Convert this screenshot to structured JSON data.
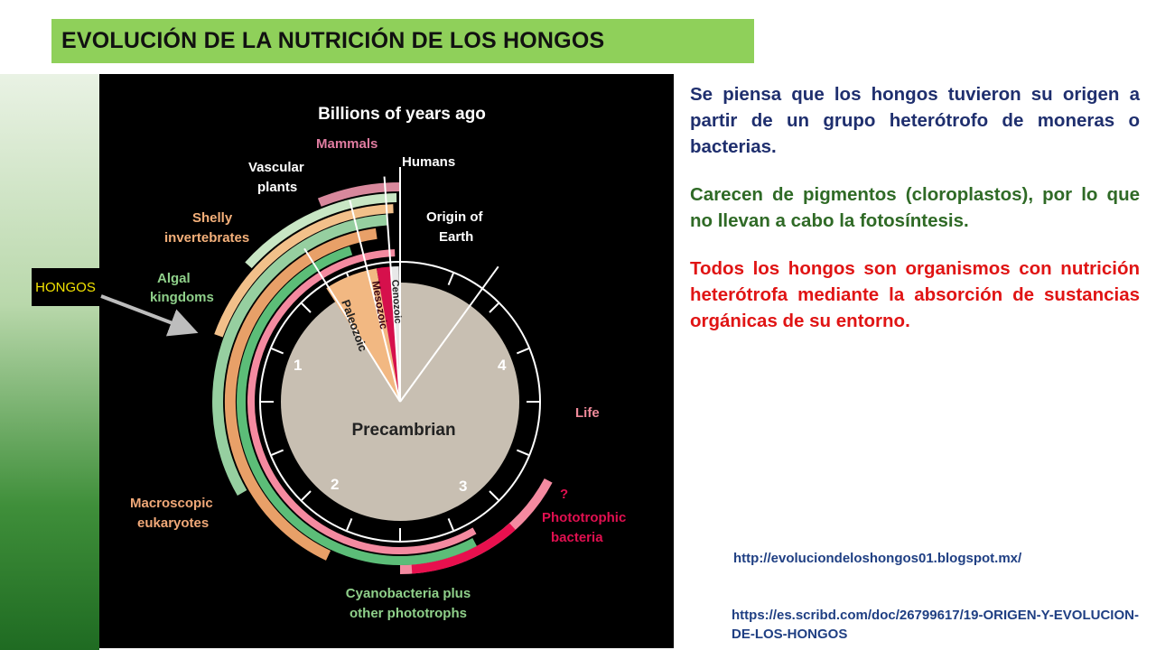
{
  "title": "EVOLUCIÓN DE LA NUTRICIÓN DE LOS HONGOS",
  "side_label": "HONGOS",
  "paragraphs": {
    "p1": "Se piensa que los hongos tuvieron su origen a partir de un grupo heterótrofo de moneras o bacterias.",
    "p2": "Carecen de pigmentos (cloroplastos), por lo que no llevan a cabo la fotosíntesis.",
    "p3": "Todos los hongos son organismos con nutrición heterótrofa mediante la absorción de sustancias orgánicas de su entorno."
  },
  "links": {
    "link1": "http://evoluciondeloshongos01.blogspot.mx/",
    "link2": "https://es.scribd.com/doc/26799617/19-ORIGEN-Y-EVOLUCION-DE-LOS-HONGOS"
  },
  "colors": {
    "title_bg": "#8fd05a",
    "p1": "#1f2f6e",
    "p2": "#2f6a26",
    "p3": "#e01414",
    "link": "#1f3f83"
  },
  "diagram": {
    "header": "Billions of years ago",
    "eras": {
      "precambrian": "Precambrian",
      "paleozoic": "Paleozoic",
      "mesozoic": "Mesozoic",
      "cenozoic": "Cenozoic"
    },
    "clock_numbers": [
      "1",
      "2",
      "3",
      "4"
    ],
    "labels": {
      "mammals": "Mammals",
      "humans": "Humans",
      "vascular_1": "Vascular",
      "vascular_2": "plants",
      "shelly_1": "Shelly",
      "shelly_2": "invertebrates",
      "algal_1": "Algal",
      "algal_2": "kingdoms",
      "origin_1": "Origin of",
      "origin_2": "Earth",
      "life": "Life",
      "question": "?",
      "photo_1": "Phototrophic",
      "photo_2": "bacteria",
      "macro_1": "Macroscopic",
      "macro_2": "eukaryotes",
      "cyano_1": "Cyanobacteria plus",
      "cyano_2": "other phototrophs"
    }
  }
}
